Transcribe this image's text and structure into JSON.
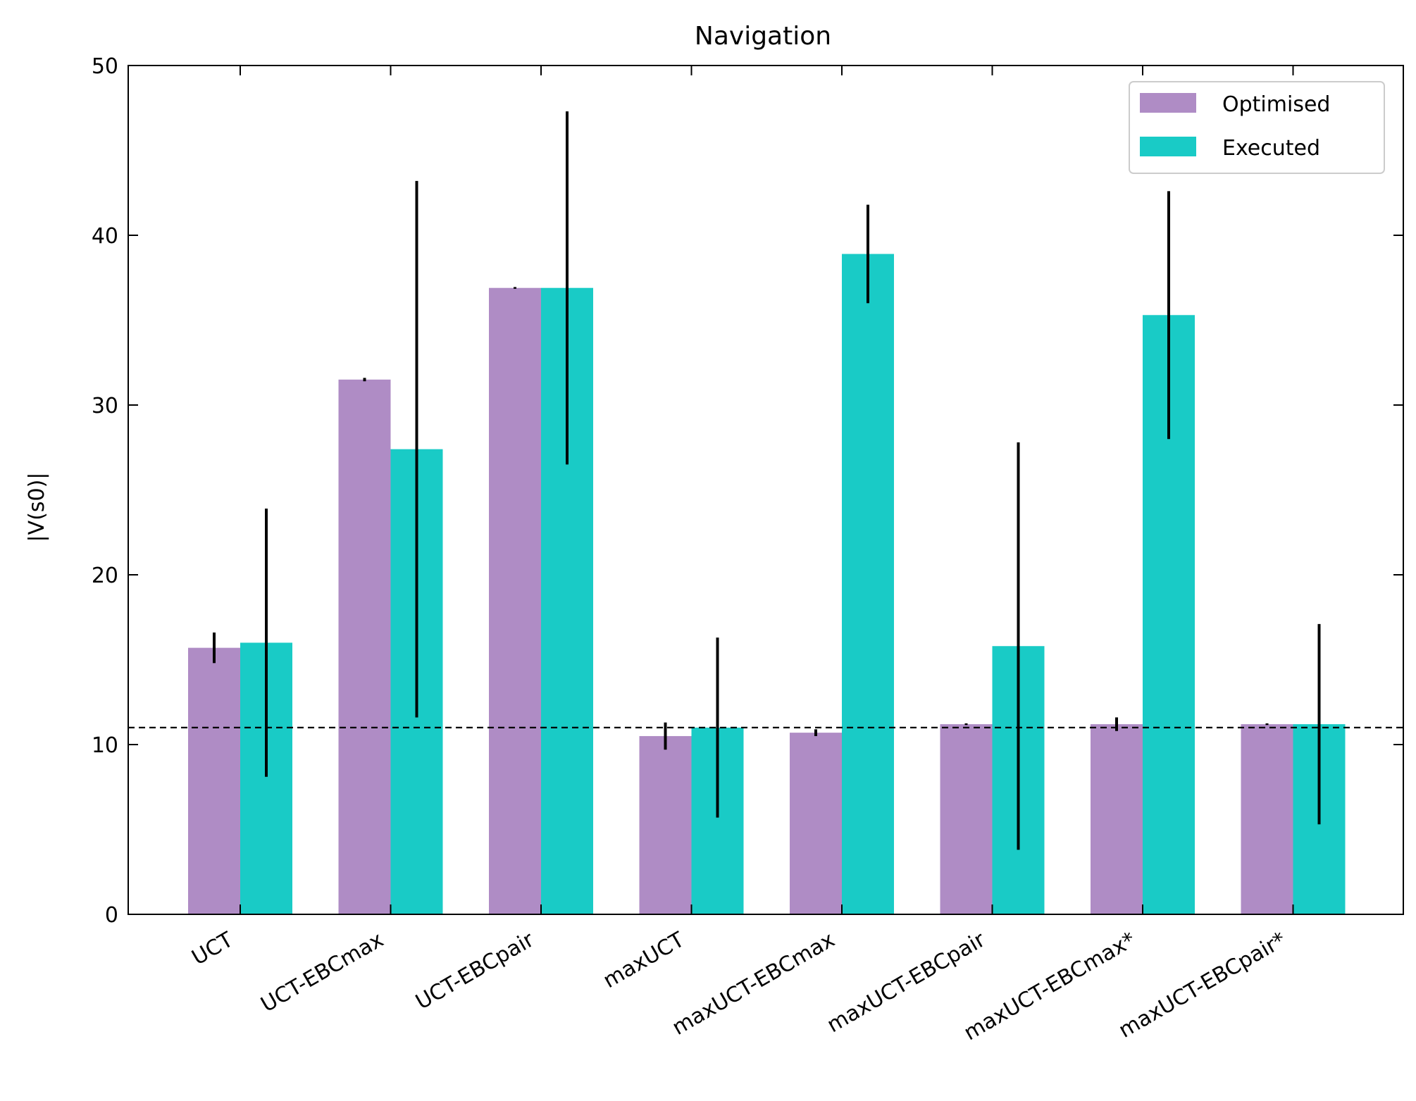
{
  "chart_data": {
    "type": "bar",
    "title": "Navigation",
    "ylabel": "|V(s0)|",
    "xlabel": "",
    "ylim": [
      0,
      50
    ],
    "yticks": [
      0,
      10,
      20,
      30,
      40,
      50
    ],
    "grid": false,
    "legend": "top-right",
    "categories": [
      "UCT",
      "UCT-EBCmax",
      "UCT-EBCpair",
      "maxUCT",
      "maxUCT-EBCmax",
      "maxUCT-EBCpair",
      "maxUCT-EBCmax*",
      "maxUCT-EBCpair*"
    ],
    "series": [
      {
        "name": "Optimised",
        "color": "#af8cc5",
        "values": [
          15.7,
          31.5,
          36.9,
          10.5,
          10.7,
          11.2,
          11.2,
          11.2
        ],
        "errors": [
          0.9,
          0.1,
          0.05,
          0.8,
          0.2,
          0.05,
          0.4,
          0.05
        ]
      },
      {
        "name": "Executed",
        "color": "#19cbc6",
        "values": [
          16.0,
          27.4,
          36.9,
          11.0,
          38.9,
          15.8,
          35.3,
          11.2
        ],
        "errors": [
          7.9,
          15.8,
          10.4,
          5.3,
          2.9,
          12.0,
          7.3,
          5.9
        ]
      }
    ],
    "reference_line": {
      "y": 11.0,
      "style": "dashed"
    }
  }
}
